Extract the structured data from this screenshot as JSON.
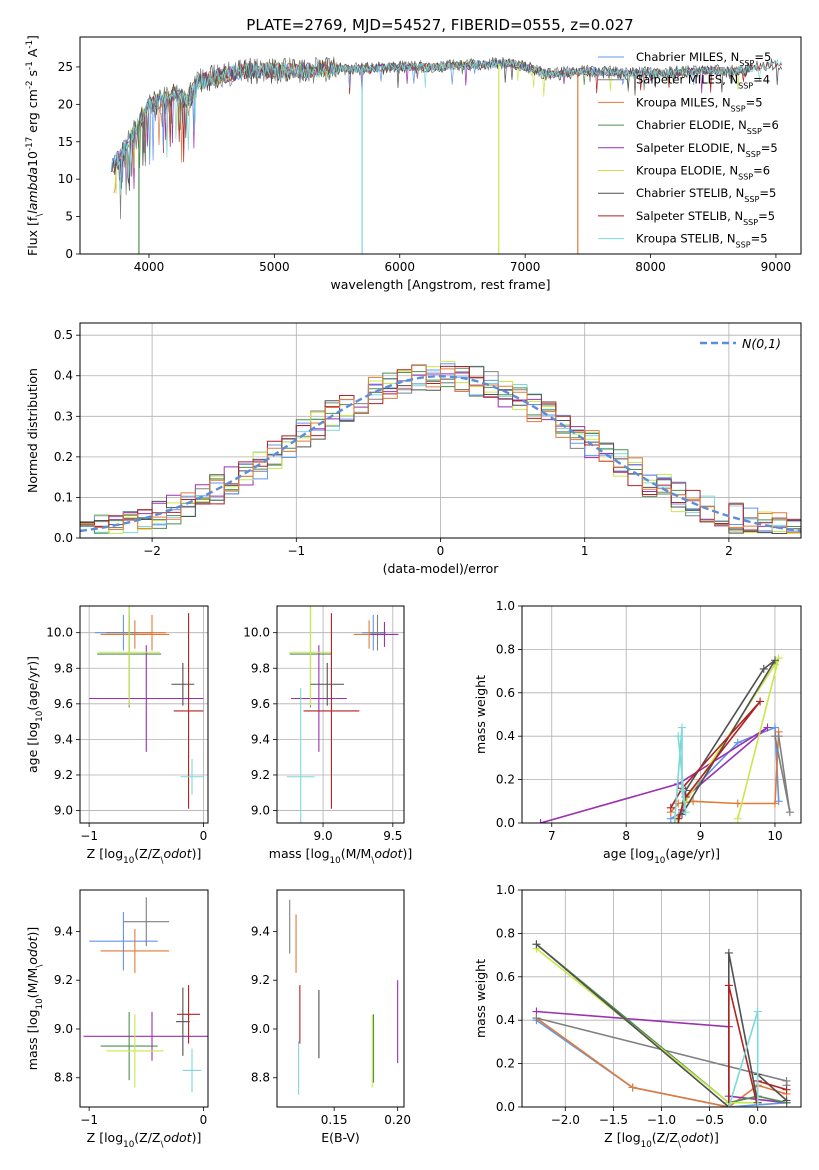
{
  "figure": {
    "title": "PLATE=2769, MJD=54527, FIBERID=0555, z=0.027"
  },
  "series_styles": [
    {
      "name": "Chabrier MILES, N$_{SSP}$=5",
      "color": "#6495ED"
    },
    {
      "name": "Salpeter MILES, N$_{SSP}$=4",
      "color": "#808080"
    },
    {
      "name": "Kroupa MILES, N$_{SSP}$=5",
      "color": "#E07B39"
    },
    {
      "name": "Chabrier ELODIE, N$_{SSP}$=6",
      "color": "#4F8F4F"
    },
    {
      "name": "Salpeter ELODIE, N$_{SSP}$=5",
      "color": "#9B30B0"
    },
    {
      "name": "Kroupa ELODIE, N$_{SSP}$=6",
      "color": "#C8E84A"
    },
    {
      "name": "Chabrier STELIB, N$_{SSP}$=5",
      "color": "#505050"
    },
    {
      "name": "Salpeter STELIB, N$_{SSP}$=5",
      "color": "#B22222"
    },
    {
      "name": "Kroupa STELIB, N$_{SSP}$=5",
      "color": "#7FD8D8"
    }
  ],
  "chart_data": [
    {
      "id": "spectrum",
      "type": "line",
      "xlabel": "wavelength [Angstrom, rest frame]",
      "ylabel": "Flux [f$_\\lambda$10$^{-17}$ erg cm$^{-2}$ s$^{-1}$ A$^{-1}$]",
      "xlim": [
        3450,
        9200
      ],
      "ylim": [
        0,
        29
      ],
      "xticks": [
        4000,
        5000,
        6000,
        7000,
        8000,
        9000
      ],
      "yticks": [
        0,
        5,
        10,
        15,
        20,
        25
      ],
      "legend": "right",
      "envelope": {
        "x": [
          3700,
          3800,
          3900,
          4000,
          4100,
          4200,
          4300,
          4400,
          4600,
          4800,
          5000,
          5200,
          5500,
          5800,
          6000,
          6300,
          6600,
          6900,
          7200,
          7500,
          7800,
          8100,
          8400,
          8700,
          9000
        ],
        "y": [
          11.5,
          14,
          17,
          20,
          20.5,
          21.5,
          20.5,
          23,
          24,
          24.5,
          24.5,
          24.5,
          24.7,
          24.8,
          25,
          25,
          25.3,
          25.5,
          24,
          24.5,
          24.2,
          24.2,
          24.5,
          24.5,
          25.5
        ]
      },
      "spikes": [
        {
          "x": 3920,
          "y": 0,
          "series": 3
        },
        {
          "x": 5700,
          "y": 0,
          "series": 8
        },
        {
          "x": 6790,
          "y": 0,
          "series": 5
        },
        {
          "x": 7420,
          "y": 0,
          "series": 2
        }
      ]
    },
    {
      "id": "residuals",
      "type": "line",
      "xlabel": "(data-model)/error",
      "ylabel": "Normed distribution",
      "xlim": [
        -2.5,
        2.5
      ],
      "ylim": [
        0,
        0.53
      ],
      "xticks": [
        -2,
        -1,
        0,
        1,
        2
      ],
      "yticks": [
        0.0,
        0.1,
        0.2,
        0.3,
        0.4,
        0.5
      ],
      "grid": true,
      "legend": "top-right",
      "reference": {
        "name": "$\\mathcal{N}(0,1)$",
        "color": "#5B8ED6",
        "mean": 0,
        "sigma": 1
      }
    },
    {
      "id": "age-vs-z",
      "type": "scatter",
      "xlabel": "Z [log$_{10}$(Z/Z$_\\odot$)]",
      "ylabel": "age  [log$_{10}$(age/yr)]",
      "xlim": [
        -1.08,
        0.04
      ],
      "ylim": [
        8.93,
        10.15
      ],
      "xticks": [
        -1,
        0
      ],
      "yticks": [
        9.0,
        9.2,
        9.4,
        9.6,
        9.8,
        10.0
      ],
      "grid": true,
      "points": [
        {
          "series": 0,
          "x": -0.7,
          "y": 10.0,
          "xerr": 0.25,
          "yerr": 0.1
        },
        {
          "series": 1,
          "x": -0.65,
          "y": 10.0,
          "xerr": 0.2,
          "yerr": 0.1
        },
        {
          "series": 2,
          "x": -0.6,
          "y": 9.99,
          "xerr": 0.3,
          "yerr": 0.08
        },
        {
          "series": 3,
          "x": -0.65,
          "y": 9.88,
          "xerr": 0.28,
          "yerr": 0.3
        },
        {
          "series": 4,
          "x": -0.5,
          "y": 9.63,
          "xerr": 0.5,
          "yerr": 0.3
        },
        {
          "series": 5,
          "x": -0.65,
          "y": 9.89,
          "xerr": 0.27,
          "yerr": 0.3
        },
        {
          "series": 6,
          "x": -0.18,
          "y": 9.71,
          "xerr": 0.1,
          "yerr": 0.12
        },
        {
          "series": 7,
          "x": -0.13,
          "y": 9.56,
          "xerr": 0.13,
          "yerr": 0.55
        },
        {
          "series": 8,
          "x": -0.1,
          "y": 9.19,
          "xerr": 0.1,
          "yerr": 0.1
        },
        {
          "series": 2,
          "x": -0.45,
          "y": 10.0,
          "xerr": 0.12,
          "yerr": 0.1
        }
      ]
    },
    {
      "id": "age-vs-mass",
      "type": "scatter",
      "xlabel": "mass [log$_{10}$(M/M$_\\odot$)]",
      "ylabel": "",
      "xlim": [
        8.67,
        9.58
      ],
      "ylim": [
        8.93,
        10.15
      ],
      "xticks": [
        9.0,
        9.5
      ],
      "yticks": [
        9.0,
        9.2,
        9.4,
        9.6,
        9.8,
        10.0
      ],
      "grid": true,
      "points": [
        {
          "series": 0,
          "x": 9.36,
          "y": 10.0,
          "xerr": 0.08,
          "yerr": 0.1
        },
        {
          "series": 1,
          "x": 9.39,
          "y": 10.0,
          "xerr": 0.06,
          "yerr": 0.1
        },
        {
          "series": 2,
          "x": 9.33,
          "y": 9.99,
          "xerr": 0.11,
          "yerr": 0.08
        },
        {
          "series": 3,
          "x": 8.91,
          "y": 9.88,
          "xerr": 0.15,
          "yerr": 0.3
        },
        {
          "series": 4,
          "x": 8.97,
          "y": 9.63,
          "xerr": 0.2,
          "yerr": 0.3
        },
        {
          "series": 5,
          "x": 8.91,
          "y": 9.89,
          "xerr": 0.15,
          "yerr": 0.3
        },
        {
          "series": 6,
          "x": 9.03,
          "y": 9.71,
          "xerr": 0.12,
          "yerr": 0.12
        },
        {
          "series": 7,
          "x": 9.06,
          "y": 9.56,
          "xerr": 0.2,
          "yerr": 0.55
        },
        {
          "series": 8,
          "x": 8.84,
          "y": 9.19,
          "xerr": 0.1,
          "yerr": 0.5
        },
        {
          "series": 4,
          "x": 9.44,
          "y": 9.99,
          "xerr": 0.1,
          "yerr": 0.07
        }
      ]
    },
    {
      "id": "weight-vs-age",
      "type": "line",
      "xlabel": "age  [log$_{10}$(age/yr)]",
      "ylabel": "mass weight",
      "xlim": [
        6.6,
        10.35
      ],
      "ylim": [
        0,
        1.0
      ],
      "xticks": [
        7,
        8,
        9,
        10
      ],
      "yticks": [
        0.0,
        0.2,
        0.4,
        0.6,
        0.8,
        1.0
      ],
      "grid": true,
      "series": [
        {
          "series": 0,
          "x": [
            8.6,
            8.75,
            8.8,
            9.5,
            10.0,
            10.05
          ],
          "y": [
            0.02,
            0.05,
            0.12,
            0.37,
            0.44,
            0.1
          ]
        },
        {
          "series": 2,
          "x": [
            8.6,
            8.7,
            8.9,
            9.5,
            10.0,
            10.05
          ],
          "y": [
            0.05,
            0.09,
            0.1,
            0.09,
            0.09,
            0.42
          ]
        },
        {
          "series": 4,
          "x": [
            6.85,
            8.7,
            9.9,
            8.8,
            8.75
          ],
          "y": [
            0.0,
            0.18,
            0.44,
            0.12,
            0.06
          ]
        },
        {
          "series": 5,
          "x": [
            8.65,
            8.8,
            10.0,
            10.05,
            9.5
          ],
          "y": [
            0.0,
            0.1,
            0.73,
            0.76,
            0.02
          ]
        },
        {
          "series": 6,
          "x": [
            8.7,
            8.8,
            9.85,
            10.0,
            8.75
          ],
          "y": [
            0.0,
            0.15,
            0.71,
            0.75,
            0.04
          ]
        },
        {
          "series": 7,
          "x": [
            8.6,
            8.75,
            9.8,
            8.8,
            8.7
          ],
          "y": [
            0.07,
            0.16,
            0.56,
            0.12,
            0.02
          ]
        },
        {
          "series": 8,
          "x": [
            8.65,
            8.75,
            8.75,
            8.8,
            8.7
          ],
          "y": [
            0.0,
            0.44,
            0.15,
            0.05,
            0.4
          ]
        },
        {
          "series": 1,
          "x": [
            10.05,
            10.2,
            10.0
          ],
          "y": [
            0.4,
            0.05,
            0.4
          ]
        }
      ]
    },
    {
      "id": "mass-vs-z",
      "type": "scatter",
      "xlabel": "Z [log$_{10}$(Z/Z$_\\odot$)]",
      "ylabel": "mass [log$_{10}$(M/M$_\\odot$)]",
      "xlim": [
        -1.08,
        0.04
      ],
      "ylim": [
        8.68,
        9.57
      ],
      "xticks": [
        -1,
        0
      ],
      "yticks": [
        8.8,
        9.0,
        9.2,
        9.4
      ],
      "points": [
        {
          "series": 0,
          "x": -0.7,
          "y": 9.36,
          "xerr": 0.3,
          "yerr": 0.12
        },
        {
          "series": 1,
          "x": -0.5,
          "y": 9.44,
          "xerr": 0.2,
          "yerr": 0.1
        },
        {
          "series": 2,
          "x": -0.6,
          "y": 9.32,
          "xerr": 0.3,
          "yerr": 0.09
        },
        {
          "series": 3,
          "x": -0.65,
          "y": 8.93,
          "xerr": 0.25,
          "yerr": 0.14
        },
        {
          "series": 4,
          "x": -0.45,
          "y": 8.97,
          "xerr": 0.6,
          "yerr": 0.1
        },
        {
          "series": 5,
          "x": -0.6,
          "y": 8.91,
          "xerr": 0.25,
          "yerr": 0.15
        },
        {
          "series": 6,
          "x": -0.18,
          "y": 9.03,
          "xerr": 0.06,
          "yerr": 0.14
        },
        {
          "series": 7,
          "x": -0.13,
          "y": 9.06,
          "xerr": 0.1,
          "yerr": 0.12
        },
        {
          "series": 8,
          "x": -0.1,
          "y": 8.83,
          "xerr": 0.08,
          "yerr": 0.09
        }
      ]
    },
    {
      "id": "mass-vs-ebv",
      "type": "scatter",
      "xlabel": "E(B-V)",
      "ylabel": "",
      "xlim": [
        0.105,
        0.205
      ],
      "ylim": [
        8.68,
        9.57
      ],
      "xticks": [
        0.15,
        0.2
      ],
      "yticks": [
        8.8,
        9.0,
        9.2,
        9.4
      ],
      "points": [
        {
          "series": 1,
          "x": 0.115,
          "y": 9.42,
          "xerr": 0,
          "yerr": 0.11
        },
        {
          "series": 2,
          "x": 0.12,
          "y": 9.35,
          "xerr": 0,
          "yerr": 0.12
        },
        {
          "series": 8,
          "x": 0.122,
          "y": 8.84,
          "xerr": 0,
          "yerr": 0.11
        },
        {
          "series": 7,
          "x": 0.123,
          "y": 9.06,
          "xerr": 0,
          "yerr": 0.12
        },
        {
          "series": 6,
          "x": 0.138,
          "y": 9.02,
          "xerr": 0,
          "yerr": 0.14
        },
        {
          "series": 5,
          "x": 0.18,
          "y": 8.91,
          "xerr": 0,
          "yerr": 0.15
        },
        {
          "series": 3,
          "x": 0.181,
          "y": 8.92,
          "xerr": 0,
          "yerr": 0.14
        },
        {
          "series": 4,
          "x": 0.2,
          "y": 9.03,
          "xerr": 0,
          "yerr": 0.17
        }
      ]
    },
    {
      "id": "weight-vs-z",
      "type": "line",
      "xlabel": "Z [log$_{10}$(Z/Z$_\\odot$)]",
      "ylabel": "mass weight",
      "xlim": [
        -2.45,
        0.45
      ],
      "ylim": [
        0,
        1.0
      ],
      "xticks": [
        -2.0,
        -1.5,
        -1.0,
        -0.5,
        0.0
      ],
      "yticks": [
        0.0,
        0.2,
        0.4,
        0.6,
        0.8,
        1.0
      ],
      "grid": true,
      "series": [
        {
          "series": 0,
          "x": [
            -2.3,
            -1.3,
            -0.3,
            0.3
          ],
          "y": [
            0.4,
            0.09,
            0.0,
            0.02
          ]
        },
        {
          "series": 2,
          "x": [
            -2.3,
            -1.3,
            -0.3,
            0.0,
            0.3
          ],
          "y": [
            0.41,
            0.09,
            0.0,
            0.1,
            0.06
          ]
        },
        {
          "series": 4,
          "x": [
            -2.3,
            -0.3,
            -0.3,
            0.3
          ],
          "y": [
            0.44,
            0.37,
            0.05,
            0.02
          ]
        },
        {
          "series": 1,
          "x": [
            -2.3,
            0.3,
            0.3
          ],
          "y": [
            0.41,
            0.12,
            0.1
          ]
        },
        {
          "series": 3,
          "x": [
            -2.3,
            -0.3,
            0.0,
            0.3
          ],
          "y": [
            0.75,
            0.02,
            0.05,
            0.02
          ]
        },
        {
          "series": 5,
          "x": [
            -2.3,
            -0.3,
            -0.3,
            0.0
          ],
          "y": [
            0.73,
            0.02,
            0.02,
            0.02
          ]
        },
        {
          "series": 6,
          "x": [
            -2.3,
            -0.3,
            -0.3,
            0.0,
            0.0,
            0.3
          ],
          "y": [
            0.75,
            0.0,
            0.71,
            0.02,
            0.15,
            0.03
          ]
        },
        {
          "series": 7,
          "x": [
            -0.3,
            -0.3,
            0.0,
            0.0,
            0.3
          ],
          "y": [
            0.0,
            0.56,
            0.0,
            0.12,
            0.08
          ]
        },
        {
          "series": 8,
          "x": [
            -0.3,
            0.0,
            0.0,
            -0.3
          ],
          "y": [
            0.0,
            0.44,
            0.0,
            0.0
          ]
        }
      ]
    }
  ]
}
